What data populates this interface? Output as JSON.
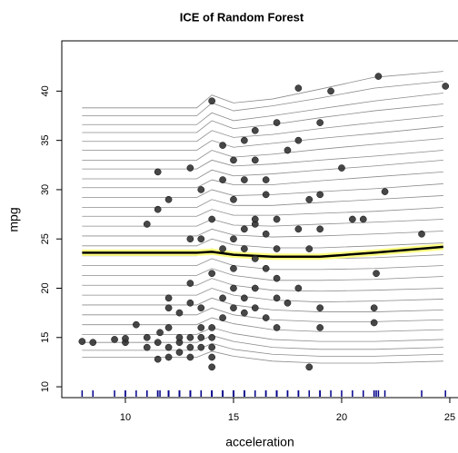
{
  "chart_data": {
    "type": "ice",
    "title": "ICE of Random Forest",
    "x_label": "acceleration",
    "y_label": "mpg",
    "xlim": [
      7.06,
      25.38
    ],
    "ylim": [
      8.9,
      45.1
    ],
    "xticks": [
      10,
      15,
      20,
      25
    ],
    "yticks": [
      10,
      15,
      20,
      25,
      30,
      35,
      40
    ],
    "x": [
      8,
      13.3,
      14,
      15,
      16.8,
      19,
      21.5,
      24.7
    ],
    "curve_color": "#8c8c8c",
    "ice_curves": [
      [
        38.3,
        38.3,
        39.6,
        38.8,
        39.2,
        40.2,
        41.4,
        42.0
      ],
      [
        37.5,
        37.5,
        38.8,
        38.0,
        38.5,
        39.3,
        40.3,
        41.0
      ],
      [
        36.6,
        36.6,
        37.8,
        37.0,
        37.5,
        38.2,
        39.0,
        39.8
      ],
      [
        35.8,
        35.8,
        37.0,
        36.2,
        36.6,
        37.3,
        38.0,
        38.7
      ],
      [
        34.9,
        34.9,
        36.0,
        35.3,
        35.6,
        36.2,
        36.8,
        37.5
      ],
      [
        34.0,
        34.0,
        35.0,
        34.3,
        34.7,
        35.2,
        35.7,
        36.4
      ],
      [
        33.0,
        33.0,
        34.0,
        33.3,
        33.6,
        34.1,
        34.6,
        35.2
      ],
      [
        32.1,
        32.1,
        33.0,
        32.4,
        32.6,
        33.0,
        33.4,
        34.0
      ],
      [
        31.1,
        31.1,
        32.0,
        31.4,
        31.6,
        32.0,
        32.4,
        33.0
      ],
      [
        30.2,
        30.2,
        31.0,
        30.5,
        30.5,
        30.9,
        31.3,
        31.8
      ],
      [
        29.2,
        29.2,
        30.0,
        29.4,
        29.5,
        29.8,
        30.1,
        30.6
      ],
      [
        28.2,
        28.2,
        29.0,
        28.4,
        28.4,
        28.7,
        29.0,
        29.4
      ],
      [
        27.3,
        27.3,
        28.0,
        27.4,
        27.4,
        27.6,
        27.8,
        28.2
      ],
      [
        26.3,
        26.3,
        27.0,
        26.4,
        26.3,
        26.5,
        26.7,
        27.0
      ],
      [
        25.3,
        25.3,
        26.0,
        25.4,
        25.2,
        25.3,
        25.5,
        25.8
      ],
      [
        24.3,
        24.3,
        25.0,
        24.4,
        24.1,
        24.1,
        24.3,
        24.6
      ],
      [
        23.3,
        23.3,
        24.0,
        23.3,
        23.0,
        23.0,
        23.1,
        23.4
      ],
      [
        22.3,
        22.3,
        23.0,
        22.3,
        21.9,
        21.9,
        22.0,
        22.3
      ],
      [
        21.3,
        21.3,
        22.0,
        21.3,
        20.8,
        20.8,
        20.9,
        21.2
      ],
      [
        20.3,
        20.3,
        21.0,
        20.3,
        19.8,
        19.7,
        19.8,
        20.0
      ],
      [
        19.3,
        19.3,
        20.0,
        19.3,
        18.8,
        18.6,
        18.7,
        18.9
      ],
      [
        18.3,
        18.3,
        19.0,
        18.3,
        17.8,
        17.6,
        17.6,
        17.8
      ],
      [
        17.3,
        17.3,
        18.0,
        17.3,
        16.8,
        16.6,
        16.6,
        16.8
      ],
      [
        16.3,
        16.3,
        17.0,
        16.4,
        15.8,
        15.6,
        15.6,
        15.8
      ],
      [
        15.3,
        15.3,
        16.0,
        15.4,
        14.8,
        14.6,
        14.6,
        14.8
      ],
      [
        14.5,
        14.5,
        15.2,
        14.6,
        14.0,
        13.8,
        13.8,
        14.0
      ],
      [
        13.7,
        13.7,
        14.4,
        13.8,
        13.3,
        13.1,
        13.1,
        13.3
      ],
      [
        13.0,
        13.0,
        13.6,
        13.1,
        12.6,
        12.4,
        12.4,
        12.6
      ]
    ],
    "pdp": {
      "values": [
        23.6,
        23.6,
        23.7,
        23.4,
        23.2,
        23.2,
        23.6,
        24.2
      ],
      "color": "#000000",
      "outline": "#ffff80"
    },
    "points": {
      "color": "#333333",
      "rug_color": "#00008b",
      "x": [
        8.0,
        8.5,
        9.5,
        10.0,
        10.0,
        10.5,
        11.0,
        11.0,
        11.5,
        11.5,
        11.6,
        12.0,
        12.0,
        12.0,
        12.5,
        12.5,
        12.5,
        13.0,
        13.0,
        13.0,
        13.5,
        13.5,
        13.5,
        13.5,
        14.0,
        14.0,
        14.0,
        14.0,
        14.0,
        12.0,
        12.0,
        13.0,
        14.5,
        14.5,
        15.0,
        15.0,
        15.5,
        15.5,
        16.0,
        16.0,
        16.5,
        17.0,
        17.0,
        17.5,
        18.5,
        19.0,
        18.0,
        14.0,
        15.0,
        15.5,
        16.0,
        16.5,
        17.0,
        15.0,
        14.5,
        13.5,
        13.0,
        15.5,
        16.0,
        16.5,
        17.0,
        18.0,
        19.0,
        20.5,
        21.0,
        21.5,
        21.5,
        21.6,
        22.0,
        23.7,
        11.5,
        12.0,
        11.5,
        13.0,
        13.5,
        14.5,
        14.5,
        15.0,
        15.5,
        16.0,
        16.5,
        17.5,
        18.0,
        19.0,
        17.0,
        16.0,
        14.0,
        18.0,
        19.5,
        21.7,
        24.8,
        20.0,
        18.5,
        19.0,
        11.0,
        13.0,
        12.5,
        16.0,
        17.0,
        18.5,
        19.0,
        14.0,
        15.0,
        16.5,
        15.5
      ],
      "y": [
        14.6,
        14.5,
        14.8,
        14.5,
        14.9,
        16.3,
        15.0,
        14.0,
        14.5,
        12.8,
        15.5,
        13.0,
        14.0,
        16.0,
        13.5,
        14.5,
        15.0,
        13.0,
        14.0,
        15.0,
        14.0,
        15.0,
        16.0,
        18.0,
        13.0,
        14.0,
        15.0,
        12.0,
        16.0,
        19.0,
        18.0,
        18.5,
        17.0,
        19.0,
        18.0,
        20.0,
        17.5,
        19.0,
        18.0,
        20.0,
        17.0,
        16.0,
        19.0,
        18.5,
        12.0,
        16.0,
        20.0,
        21.5,
        22.0,
        24.0,
        23.0,
        22.0,
        21.0,
        25.0,
        24.0,
        25.0,
        25.0,
        26.0,
        26.5,
        25.5,
        27.0,
        26.0,
        26.0,
        27.0,
        27.0,
        18.0,
        16.5,
        21.5,
        29.8,
        25.5,
        31.8,
        29.0,
        28.0,
        32.2,
        30.0,
        31.0,
        34.5,
        33.0,
        35.0,
        33.0,
        31.0,
        34.0,
        35.0,
        36.8,
        36.8,
        36.0,
        39.0,
        40.3,
        40.0,
        41.5,
        40.5,
        32.2,
        29.0,
        29.5,
        26.5,
        20.5,
        17.5,
        27.0,
        24.0,
        24.0,
        18.0,
        27.0,
        29.0,
        29.5,
        31.0
      ]
    }
  }
}
